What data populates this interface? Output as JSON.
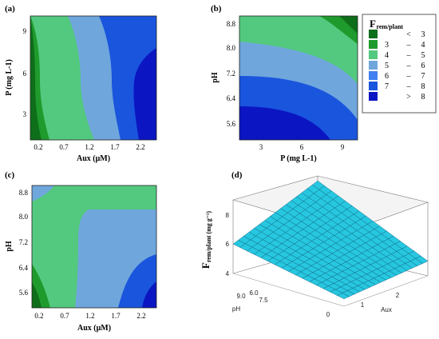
{
  "colors": {
    "dark_green": "#0e6e1a",
    "green": "#1f9a2c",
    "mint": "#53c97f",
    "light_blue": "#6fa6dc",
    "blue": "#1a55dd",
    "navy": "#0b16c2",
    "surface": "#27c7e0",
    "mesh": "#0a5c7a"
  },
  "chart_data": [
    {
      "panel": "(a)",
      "type": "contour",
      "xlabel": "Aux (μM)",
      "ylabel": "P (mg L-1)",
      "xticks": [
        "0.2",
        "0.7",
        "1.2",
        "1.7",
        "2.2"
      ],
      "yticks": [
        "3",
        "6",
        "9"
      ],
      "xlim": [
        0,
        2.5
      ],
      "ylim": [
        1,
        10
      ],
      "levels": [
        "< 3",
        "3 – 4",
        "4 – 5",
        "5 – 6",
        "6 – 7",
        "7 – 8"
      ]
    },
    {
      "panel": "(b)",
      "type": "contour",
      "xlabel": "P (mg L-1)",
      "ylabel": "pH",
      "xticks": [
        "3",
        "6",
        "9"
      ],
      "yticks": [
        "5.6",
        "6.4",
        "7.2",
        "8.0",
        "8.8"
      ],
      "xlim": [
        1,
        10
      ],
      "ylim": [
        5.2,
        9
      ],
      "levels": [
        "< 3",
        "3 – 4",
        "4 – 5",
        "5 – 6",
        "6 – 7",
        "7 – 8",
        "> 8"
      ]
    },
    {
      "panel": "(c)",
      "type": "contour",
      "xlabel": "Aux (μM)",
      "ylabel": "pH",
      "xticks": [
        "0.2",
        "0.7",
        "1.2",
        "1.7",
        "2.2"
      ],
      "yticks": [
        "5.6",
        "6.4",
        "7.2",
        "8.0",
        "8.8"
      ],
      "xlim": [
        0,
        2.5
      ],
      "ylim": [
        5.2,
        9
      ],
      "levels": [
        "< 3",
        "3 – 4",
        "4 – 5",
        "5 – 6",
        "6 – 7",
        "7 – 8"
      ]
    },
    {
      "panel": "(d)",
      "type": "surface",
      "xlabel": "Aux",
      "ylabel": "pH",
      "zlabel": "F rem/plant (mg g-1)",
      "xticks": [
        "0",
        "1",
        "2"
      ],
      "yticks": [
        "6.0",
        "7.5",
        "9.0"
      ],
      "zticks": [
        "4",
        "6",
        "8"
      ],
      "zlim": [
        3,
        9
      ],
      "corners": {
        "aux0_ph6": 3.6,
        "aux2.4_ph6": 4.2,
        "aux0_ph9": 5.4,
        "aux2.4_ph9": 8.6
      }
    }
  ],
  "legend": {
    "title_main": "F",
    "title_sub": "rem/plant",
    "items": [
      {
        "lo": "",
        "sep": "<",
        "hi": "3",
        "color": "#0e6e1a"
      },
      {
        "lo": "3",
        "sep": "–",
        "hi": "4",
        "color": "#1f9a2c"
      },
      {
        "lo": "4",
        "sep": "–",
        "hi": "5",
        "color": "#53c97f"
      },
      {
        "lo": "5",
        "sep": "–",
        "hi": "6",
        "color": "#6fa6dc"
      },
      {
        "lo": "6",
        "sep": "–",
        "hi": "7",
        "color": "#3f7ff0"
      },
      {
        "lo": "7",
        "sep": "–",
        "hi": "8",
        "color": "#1a55dd"
      },
      {
        "lo": "",
        "sep": ">",
        "hi": "8",
        "color": "#0b16c2"
      }
    ]
  }
}
